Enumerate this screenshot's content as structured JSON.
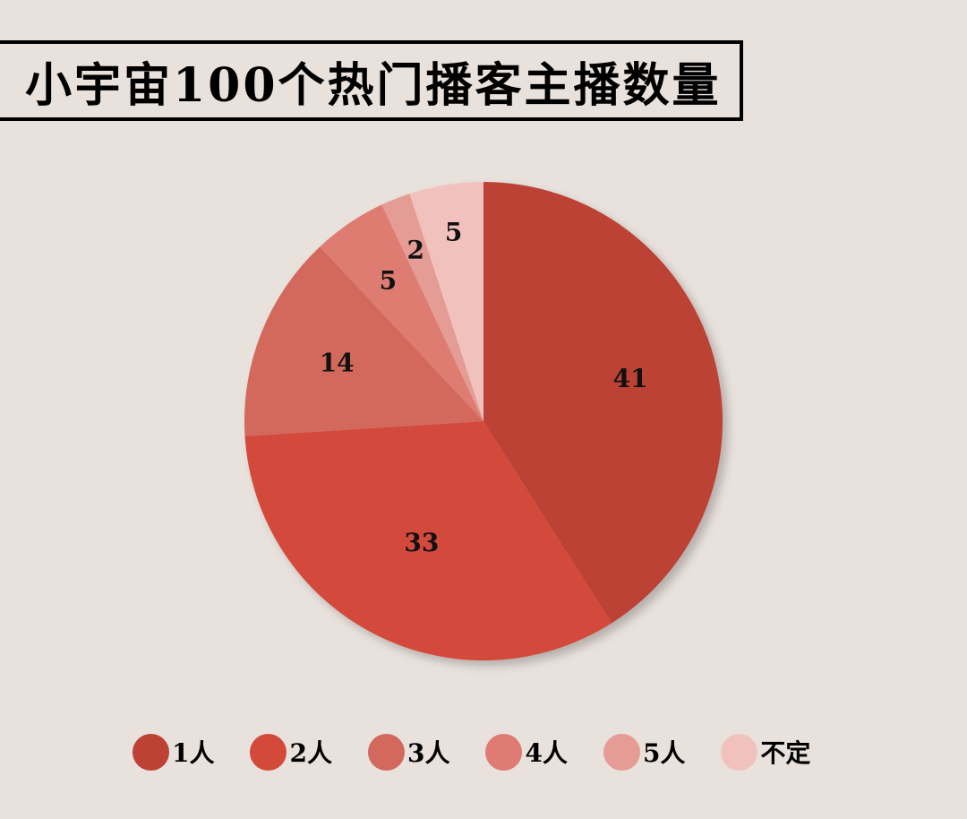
{
  "chart_data": {
    "type": "pie",
    "title": "小宇宙100个热门播客主播数量",
    "categories": [
      "1人",
      "2人",
      "3人",
      "4人",
      "5人",
      "不定"
    ],
    "values": [
      41,
      33,
      14,
      5,
      2,
      5
    ],
    "colors": [
      "#bb4235",
      "#d34a3b",
      "#d3685c",
      "#df7b72",
      "#e59c95",
      "#f1c2bd"
    ],
    "legend_position": "bottom"
  }
}
